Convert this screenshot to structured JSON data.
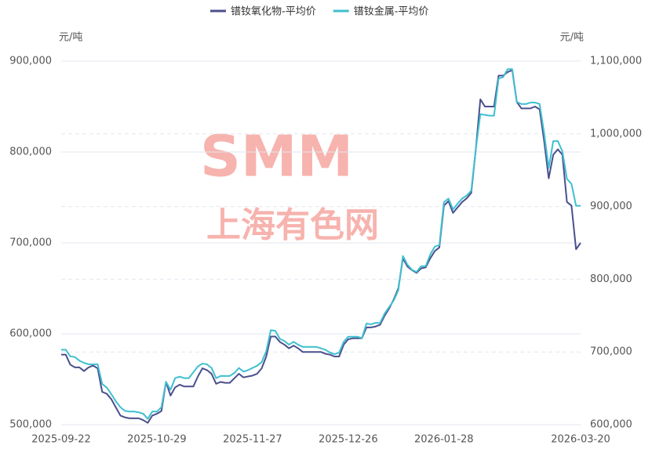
{
  "chart_data": {
    "type": "line",
    "watermark": {
      "logo": "SMM",
      "name": "上海有色网"
    },
    "y_label": "元/吨",
    "y2_label": "元/吨",
    "categories": [
      "2025-09-22",
      null,
      null,
      null,
      null,
      null,
      null,
      null,
      null,
      null,
      null,
      null,
      null,
      null,
      null,
      null,
      null,
      null,
      null,
      null,
      null,
      "2025-10-29",
      null,
      null,
      null,
      null,
      null,
      null,
      null,
      null,
      null,
      null,
      null,
      null,
      null,
      null,
      null,
      null,
      null,
      null,
      null,
      null,
      "2025-11-27",
      null,
      null,
      null,
      null,
      null,
      null,
      null,
      null,
      null,
      null,
      null,
      null,
      null,
      null,
      null,
      null,
      null,
      null,
      null,
      null,
      "2025-12-26",
      null,
      null,
      null,
      null,
      null,
      null,
      null,
      null,
      null,
      null,
      null,
      null,
      null,
      null,
      null,
      null,
      null,
      null,
      null,
      null,
      "2026-01-28",
      null,
      null,
      null,
      null,
      null,
      null,
      null,
      null,
      null,
      null,
      null,
      null,
      null,
      null,
      null,
      null,
      null,
      null,
      null,
      null,
      null,
      null,
      null,
      null,
      null,
      null,
      null,
      null,
      null,
      "2026-03-20"
    ],
    "series": [
      {
        "name": "镨钕氧化物-平均价",
        "color": "#4b4f8c",
        "axis": "y",
        "values": [
          577000,
          577000,
          566000,
          563000,
          563000,
          559000,
          563000,
          565000,
          562000,
          536000,
          534000,
          528000,
          519000,
          510000,
          508000,
          507000,
          507000,
          507000,
          505000,
          502000,
          510000,
          512000,
          515000,
          547000,
          532000,
          541000,
          544000,
          542000,
          542000,
          542000,
          553000,
          562000,
          560000,
          556000,
          545000,
          547000,
          546000,
          546000,
          551000,
          556000,
          552000,
          553000,
          554000,
          556000,
          562000,
          575000,
          597000,
          597000,
          591000,
          588000,
          584000,
          587000,
          584000,
          580000,
          580000,
          580000,
          580000,
          580000,
          578000,
          577000,
          575000,
          575000,
          588000,
          594000,
          595000,
          595000,
          595000,
          607000,
          607000,
          608000,
          610000,
          620000,
          628000,
          638000,
          650000,
          683000,
          674000,
          670000,
          667000,
          672000,
          673000,
          683000,
          691000,
          695000,
          741000,
          746000,
          733000,
          739000,
          745000,
          749000,
          755000,
          803000,
          858000,
          850000,
          850000,
          850000,
          884000,
          884000,
          888000,
          890000,
          855000,
          848000,
          848000,
          848000,
          850000,
          847000,
          812000,
          771000,
          797000,
          803000,
          797000,
          745000,
          741000,
          693000,
          700000
        ]
      },
      {
        "name": "镨钕金属-平均价",
        "color": "#3fbfcf",
        "axis": "y2",
        "values": [
          703000,
          703000,
          694000,
          693000,
          688000,
          685000,
          683000,
          683000,
          683000,
          656000,
          651000,
          642000,
          632000,
          624000,
          619000,
          618000,
          618000,
          617000,
          615000,
          608000,
          618000,
          618000,
          624000,
          659000,
          648000,
          664000,
          666000,
          664000,
          664000,
          672000,
          680000,
          684000,
          683000,
          678000,
          664000,
          667000,
          667000,
          667000,
          671000,
          678000,
          673000,
          675000,
          678000,
          681000,
          686000,
          701000,
          730000,
          729000,
          718000,
          715000,
          710000,
          714000,
          710000,
          707000,
          707000,
          707000,
          707000,
          705000,
          703000,
          699000,
          697000,
          699000,
          714000,
          721000,
          721000,
          721000,
          719000,
          739000,
          738000,
          740000,
          740000,
          753000,
          762000,
          771000,
          785000,
          832000,
          820000,
          813000,
          810000,
          818000,
          818000,
          834000,
          845000,
          847000,
          906000,
          911000,
          896000,
          904000,
          911000,
          915000,
          922000,
          979000,
          1027000,
          1026000,
          1025000,
          1025000,
          1076000,
          1078000,
          1089000,
          1089000,
          1044000,
          1041000,
          1041000,
          1043000,
          1043000,
          1041000,
          1001000,
          953000,
          990000,
          990000,
          976000,
          938000,
          931000,
          901000,
          901000
        ]
      }
    ],
    "ylim": [
      500000,
      900000
    ],
    "yticks": [
      {
        "value": 500000,
        "label": "500,000"
      },
      {
        "value": 600000,
        "label": "600,000"
      },
      {
        "value": 700000,
        "label": "700,000"
      },
      {
        "value": 800000,
        "label": "800,000"
      },
      {
        "value": 900000,
        "label": "900,000"
      }
    ],
    "y2lim": [
      600000,
      1100000
    ],
    "y2ticks": [
      {
        "value": 600000,
        "label": "600,000"
      },
      {
        "value": 700000,
        "label": "700,000"
      },
      {
        "value": 800000,
        "label": "800,000"
      },
      {
        "value": 900000,
        "label": "900,000"
      },
      {
        "value": 1000000,
        "label": "1,000,000"
      },
      {
        "value": 1100000,
        "label": "1,100,000"
      }
    ],
    "grid": true
  }
}
